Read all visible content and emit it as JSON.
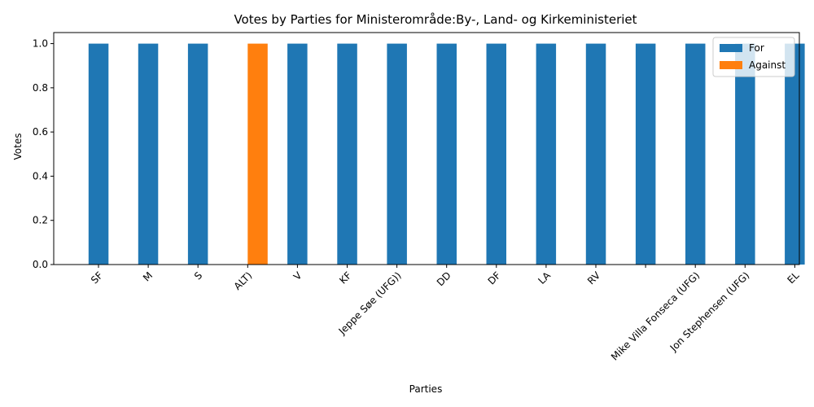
{
  "chart_data": {
    "type": "bar",
    "title": "Votes by Parties for Ministerområde:By-, Land- og Kirkeministeriet",
    "xlabel": "Parties",
    "ylabel": "Votes",
    "ylim": [
      0,
      1.05
    ],
    "yticks": [
      "0.0",
      "0.2",
      "0.4",
      "0.6",
      "0.8",
      "1.0"
    ],
    "categories": [
      "SF",
      "M",
      "S",
      "ALT)",
      "V",
      "KF",
      "Jeppe Søe (UFG))",
      "DD",
      "DF",
      "LA",
      "RV",
      "",
      "Mike Villa Fonseca (UFG)",
      "Jon Stephensen (UFG)",
      "EL"
    ],
    "series": [
      {
        "name": "For",
        "color": "#1f77b4",
        "values": [
          1,
          1,
          1,
          0,
          1,
          1,
          1,
          1,
          1,
          1,
          1,
          1,
          1,
          1,
          1
        ]
      },
      {
        "name": "Against",
        "color": "#ff7f0e",
        "values": [
          0,
          0,
          0,
          1,
          0,
          0,
          0,
          0,
          0,
          0,
          0,
          0,
          0,
          0,
          0
        ]
      }
    ],
    "legend_position": "top-right",
    "grid": false
  }
}
